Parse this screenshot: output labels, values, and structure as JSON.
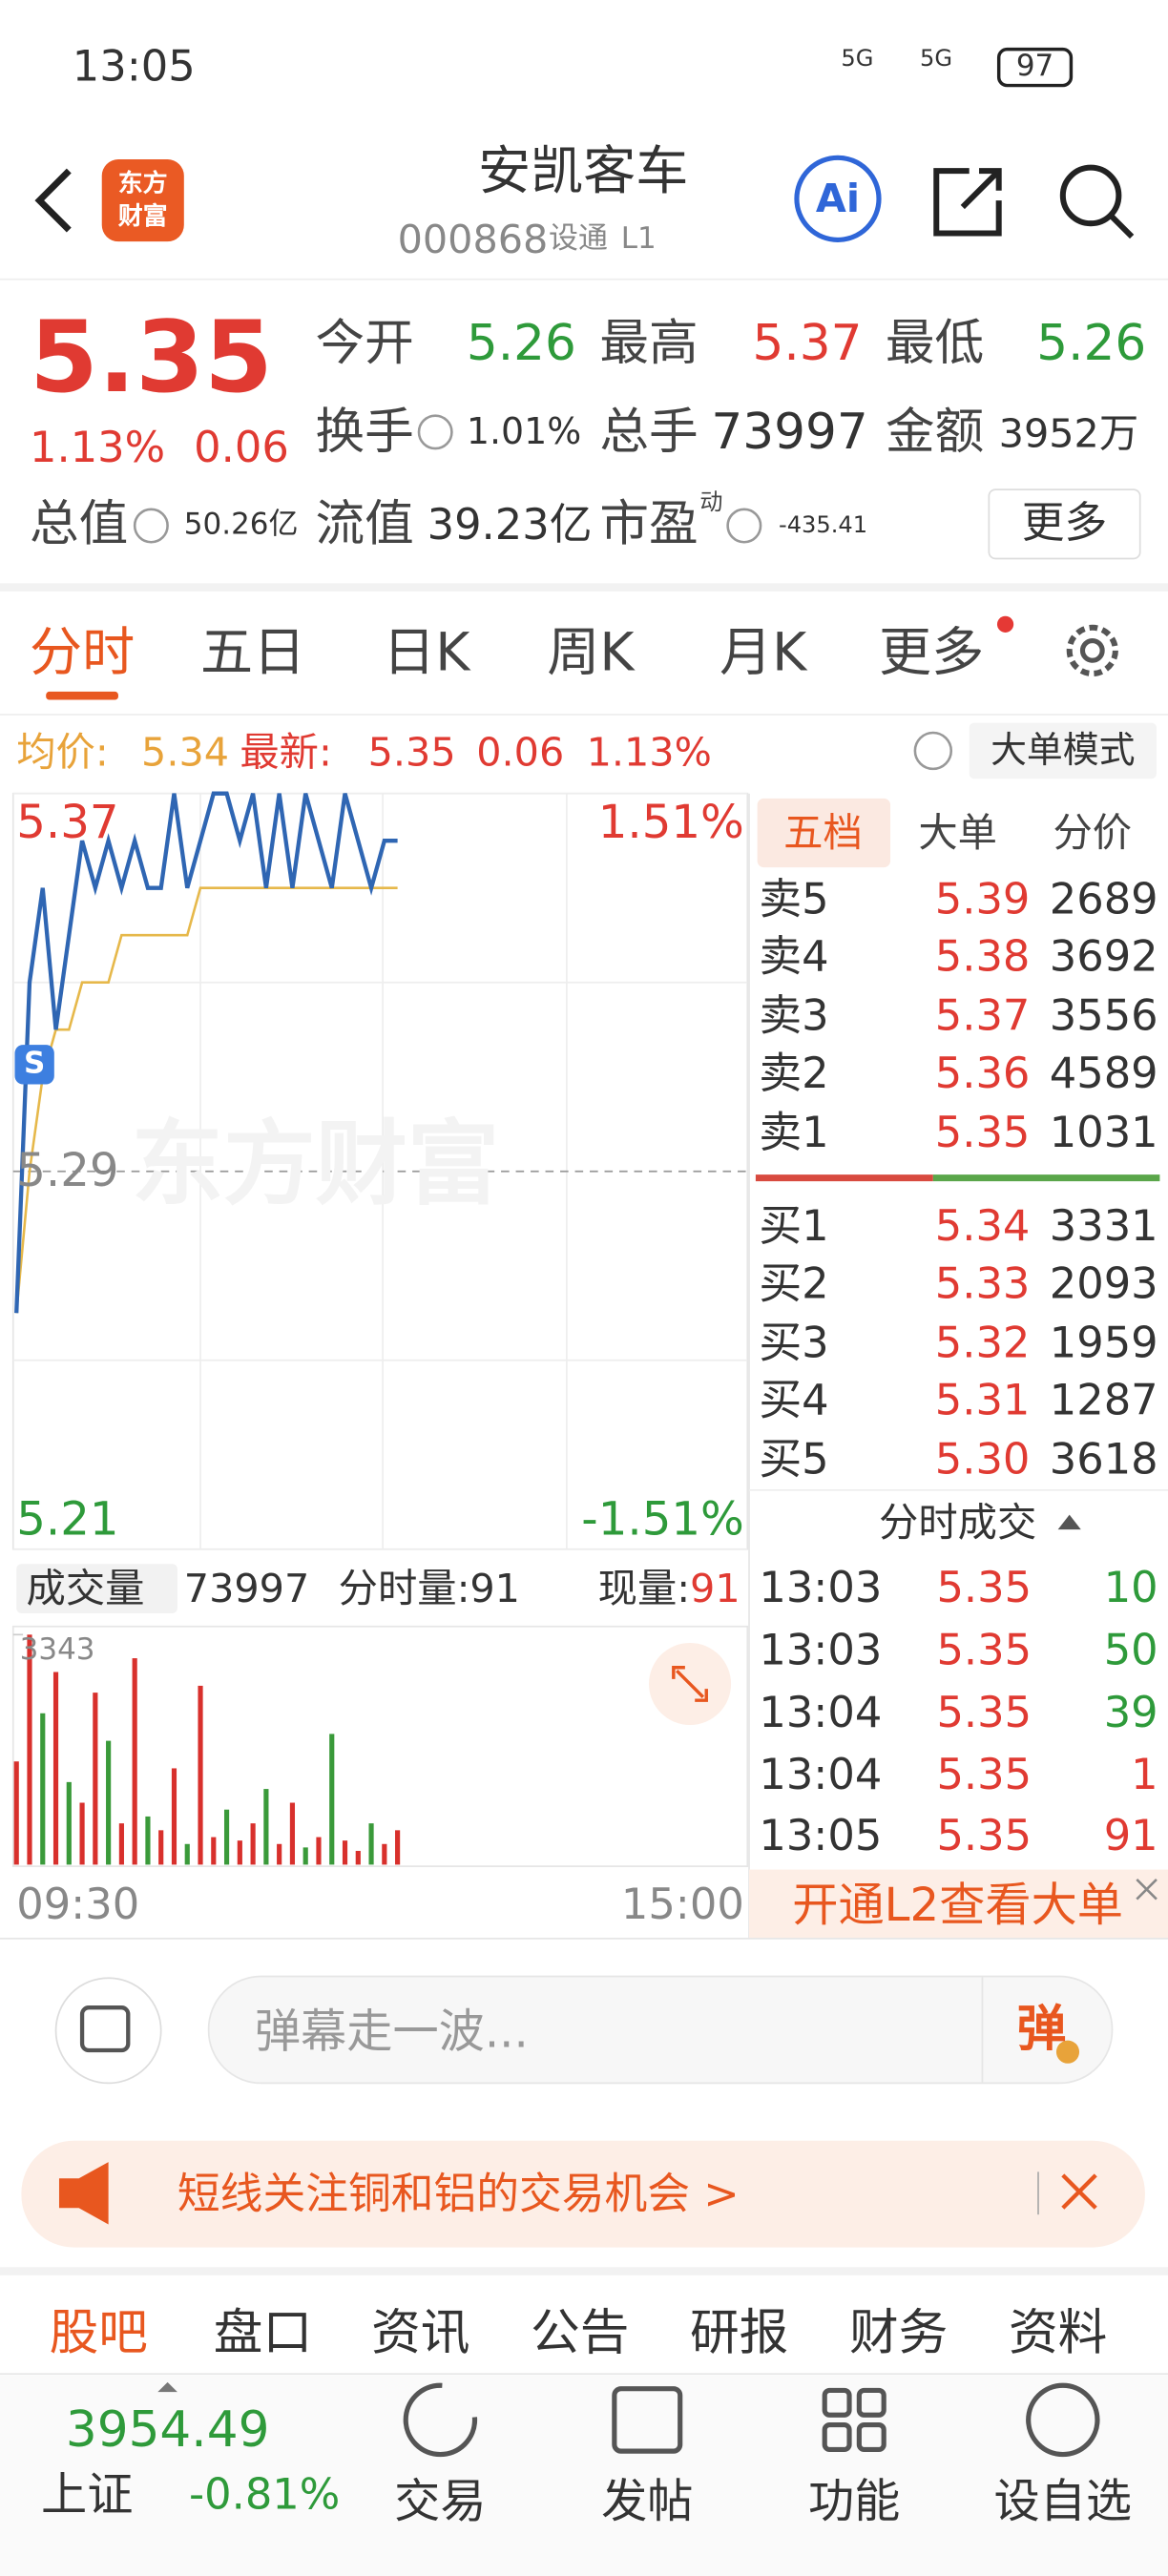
{
  "status_bar": {
    "time": "13:05",
    "net1": "5G",
    "net2": "5G",
    "battery": "97"
  },
  "header": {
    "logo": [
      "东方",
      "财富"
    ],
    "title": "安凯客车",
    "code": "000868",
    "tag": "设通",
    "level": "L1",
    "ai": "Ai"
  },
  "quote": {
    "price": "5.35",
    "change_pct": "1.13%",
    "change": "0.06",
    "fields": [
      {
        "label": "今开",
        "value": "5.26"
      },
      {
        "label": "最高",
        "value": "5.37"
      },
      {
        "label": "最低",
        "value": "5.26"
      },
      {
        "label": "换手",
        "value": "1.01%"
      },
      {
        "label": "总手",
        "value": "73997"
      },
      {
        "label": "金额",
        "value": "3952万"
      },
      {
        "label": "总值",
        "value": "50.26亿"
      },
      {
        "label": "流值",
        "value": "39.23亿"
      },
      {
        "label": "市盈",
        "value": "-435.41"
      }
    ],
    "pe_tag": "动",
    "more": "更多"
  },
  "tabs": [
    "分时",
    "五日",
    "日K",
    "周K",
    "月K",
    "更多"
  ],
  "info_line": {
    "avg_label": "均价:",
    "avg": "5.34",
    "latest_label": "最新:",
    "latest": "5.35",
    "change": "0.06",
    "change_pct": "1.13%",
    "mode": "大单模式"
  },
  "intraday": {
    "type": "line",
    "watermark": "东方财富",
    "marker": "S",
    "ylim": [
      5.21,
      5.37
    ],
    "yticks": [
      5.37,
      5.29,
      5.21
    ],
    "pct_labels": [
      "1.51%",
      "-1.51%"
    ],
    "x_labels": [
      "09:30",
      "15:00"
    ],
    "price": {
      "color": "#2f66b3",
      "values": [
        5.26,
        5.33,
        5.35,
        5.32,
        5.34,
        5.36,
        5.35,
        5.36,
        5.35,
        5.36,
        5.35,
        5.35,
        5.37,
        5.35,
        5.36,
        5.37,
        5.37,
        5.36,
        5.37,
        5.35,
        5.37,
        5.35,
        5.37,
        5.36,
        5.35,
        5.37,
        5.36,
        5.35,
        5.36,
        5.36
      ]
    },
    "avg": {
      "color": "#e6b84a",
      "values": [
        5.26,
        5.29,
        5.31,
        5.32,
        5.32,
        5.33,
        5.33,
        5.33,
        5.34,
        5.34,
        5.34,
        5.34,
        5.34,
        5.34,
        5.35,
        5.35,
        5.35,
        5.35,
        5.35,
        5.35,
        5.35,
        5.35,
        5.35,
        5.35,
        5.35,
        5.35,
        5.35,
        5.35,
        5.35,
        5.35
      ]
    },
    "volume": {
      "label": "成交量",
      "total": "73997",
      "minute_label": "分时量:",
      "minute": "91",
      "current_label": "现量:",
      "current": "91",
      "ylim": [
        0,
        3343
      ],
      "yticks": [
        3343
      ],
      "values": [
        1500,
        3343,
        2200,
        2800,
        1200,
        900,
        2500,
        1800,
        600,
        3000,
        700,
        500,
        1400,
        300,
        2600,
        400,
        800,
        350,
        600,
        1100,
        300,
        900,
        250,
        400,
        1900,
        350,
        200,
        600,
        300,
        500
      ],
      "colors": [
        "#d8302c",
        "#d8302c",
        "#3a9a3a",
        "#d8302c",
        "#3a9a3a",
        "#d8302c",
        "#d8302c",
        "#3a9a3a",
        "#d8302c",
        "#d8302c",
        "#3a9a3a",
        "#d8302c",
        "#d8302c",
        "#3a9a3a",
        "#d8302c",
        "#d8302c",
        "#3a9a3a",
        "#d8302c",
        "#d8302c",
        "#3a9a3a",
        "#d8302c",
        "#d8302c",
        "#3a9a3a",
        "#d8302c",
        "#3a9a3a",
        "#d8302c",
        "#d8302c",
        "#3a9a3a",
        "#d8302c",
        "#d8302c"
      ]
    }
  },
  "order_book": {
    "tabs": [
      "五档",
      "大单",
      "分价"
    ],
    "asks": [
      {
        "label": "卖5",
        "price": "5.39",
        "volume": "2689"
      },
      {
        "label": "卖4",
        "price": "5.38",
        "volume": "3692"
      },
      {
        "label": "卖3",
        "price": "5.37",
        "volume": "3556"
      },
      {
        "label": "卖2",
        "price": "5.36",
        "volume": "4589"
      },
      {
        "label": "卖1",
        "price": "5.35",
        "volume": "1031"
      }
    ],
    "bids": [
      {
        "label": "买1",
        "price": "5.34",
        "volume": "3331"
      },
      {
        "label": "买2",
        "price": "5.33",
        "volume": "2093"
      },
      {
        "label": "买3",
        "price": "5.32",
        "volume": "1959"
      },
      {
        "label": "买4",
        "price": "5.31",
        "volume": "1287"
      },
      {
        "label": "买5",
        "price": "5.30",
        "volume": "3618"
      }
    ]
  },
  "trades": {
    "title": "分时成交",
    "rows": [
      {
        "time": "13:03",
        "price": "5.35",
        "volume": "10"
      },
      {
        "time": "13:03",
        "price": "5.35",
        "volume": "50"
      },
      {
        "time": "13:04",
        "price": "5.35",
        "volume": "39"
      },
      {
        "time": "13:04",
        "price": "5.35",
        "volume": "1"
      },
      {
        "time": "13:05",
        "price": "5.35",
        "volume": "91"
      }
    ],
    "banner": "开通L2查看大单"
  },
  "danmu": {
    "placeholder": "弹幕走一波...",
    "button": "弹"
  },
  "notice": "短线关注铜和铝的交易机会 >",
  "bottom_tabs": [
    "股吧",
    "盘口",
    "资讯",
    "公告",
    "研报",
    "财务",
    "资料"
  ],
  "nav": {
    "index_value": "3954.49",
    "index_name": "上证",
    "index_change": "-0.81%",
    "items": [
      "交易",
      "发帖",
      "功能",
      "设自选"
    ]
  }
}
